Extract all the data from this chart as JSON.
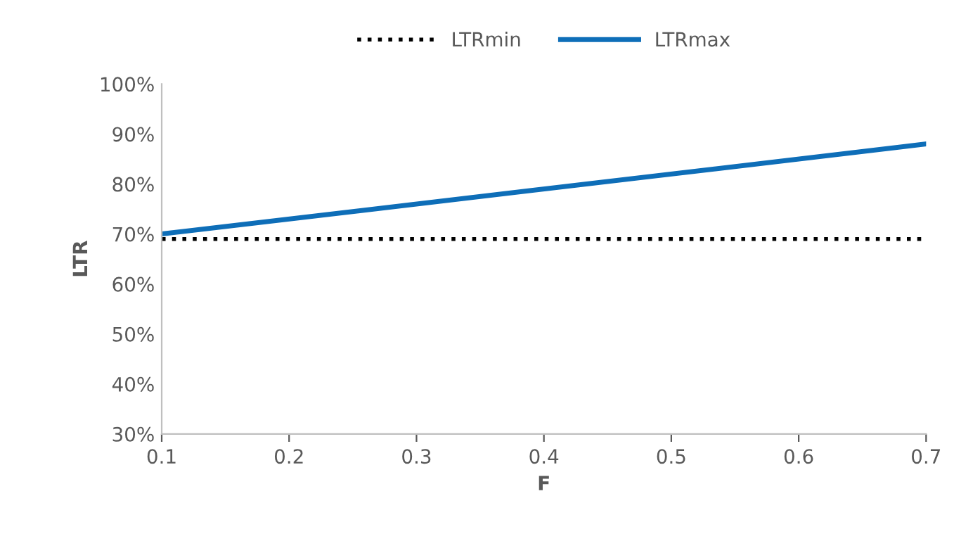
{
  "chart_data": {
    "type": "line",
    "xlabel": "F",
    "ylabel": "LTR",
    "x": [
      0.1,
      0.7
    ],
    "series": [
      {
        "name": "LTRmin",
        "color": "#000000",
        "line_style": "dotted",
        "values": [
          69,
          69
        ]
      },
      {
        "name": "LTRmax",
        "color": "#0e6eb8",
        "line_style": "solid",
        "values": [
          70,
          88
        ]
      }
    ],
    "xlim": [
      0.1,
      0.7
    ],
    "xticks": [
      0.1,
      0.2,
      0.3,
      0.4,
      0.5,
      0.6,
      0.7
    ],
    "ylim": [
      30,
      100
    ],
    "yticks": [
      {
        "value": 30,
        "label": "30%"
      },
      {
        "value": 40,
        "label": "40%"
      },
      {
        "value": 50,
        "label": "50%"
      },
      {
        "value": 60,
        "label": "60%"
      },
      {
        "value": 70,
        "label": "70%"
      },
      {
        "value": 80,
        "label": "80%"
      },
      {
        "value": 90,
        "label": "90%"
      },
      {
        "value": 100,
        "label": "100%"
      }
    ],
    "grid": false,
    "legend": "top",
    "marker": "none"
  }
}
